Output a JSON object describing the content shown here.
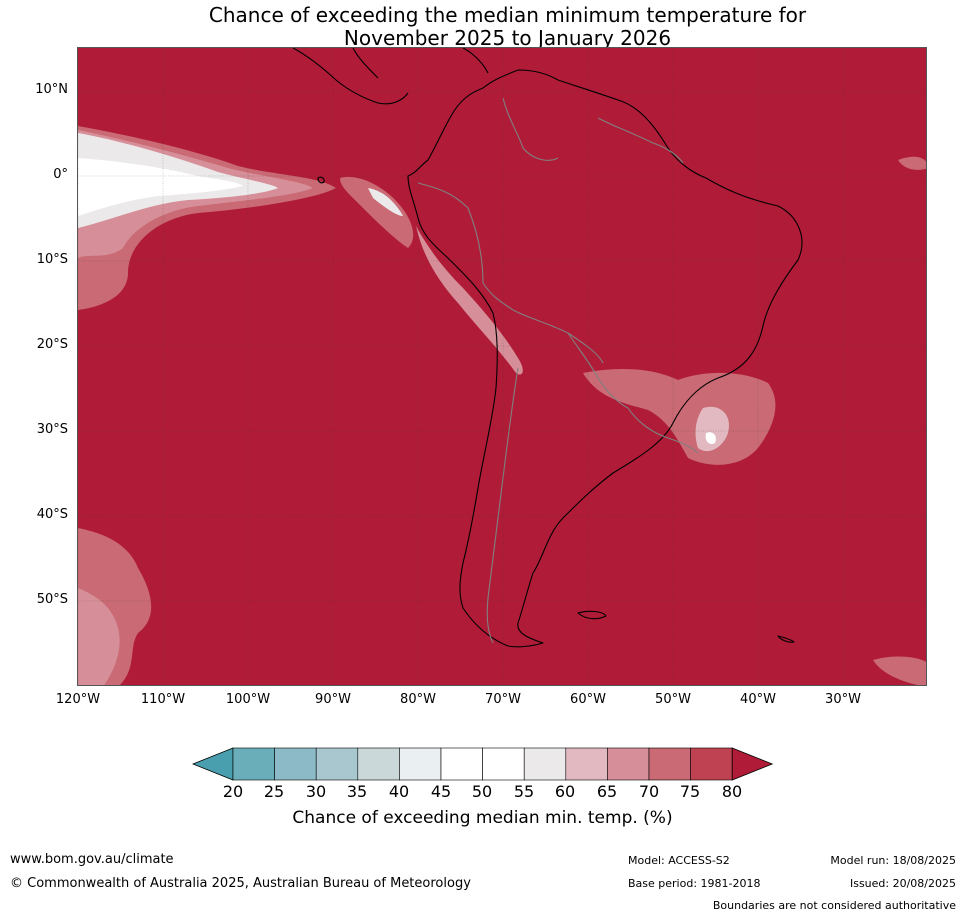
{
  "title_line1": "Chance of exceeding the median minimum temperature for",
  "title_line2": "November 2025 to January 2026",
  "lat_labels": [
    "10°N",
    "0°",
    "10°S",
    "20°S",
    "30°S",
    "40°S",
    "50°S"
  ],
  "lon_labels": [
    "120°W",
    "110°W",
    "100°W",
    "90°W",
    "80°W",
    "70°W",
    "60°W",
    "50°W",
    "40°W",
    "30°W"
  ],
  "colorbar": {
    "ticks": [
      "20",
      "25",
      "30",
      "35",
      "40",
      "45",
      "50",
      "55",
      "60",
      "65",
      "70",
      "75",
      "80"
    ],
    "colors": [
      "#6aaeba",
      "#8cbac6",
      "#a8c7ce",
      "#cbd8da",
      "#eaf0f2",
      "#ffffff",
      "#ffffff",
      "#ebe9ea",
      "#e2b9c0",
      "#d68f98",
      "#c96a74",
      "#bf4252"
    ],
    "below_color": "#4a9fae",
    "above_color": "#b01c37",
    "label": "Chance of exceeding median min. temp. (%)"
  },
  "colors": {
    "above80": "#b01c37",
    "coast": "#000000",
    "borders": "#808080",
    "grid": "#555555"
  },
  "footer": {
    "website": "www.bom.gov.au/climate",
    "copyright": "© Commonwealth of Australia 2025, Australian Bureau of Meteorology",
    "model": "Model: ACCESS-S2",
    "base_period": "Base period: 1981-2018",
    "model_run": "Model run: 18/08/2025",
    "issued": "Issued: 20/08/2025",
    "disclaimer": "Boundaries are not considered authoritative"
  }
}
